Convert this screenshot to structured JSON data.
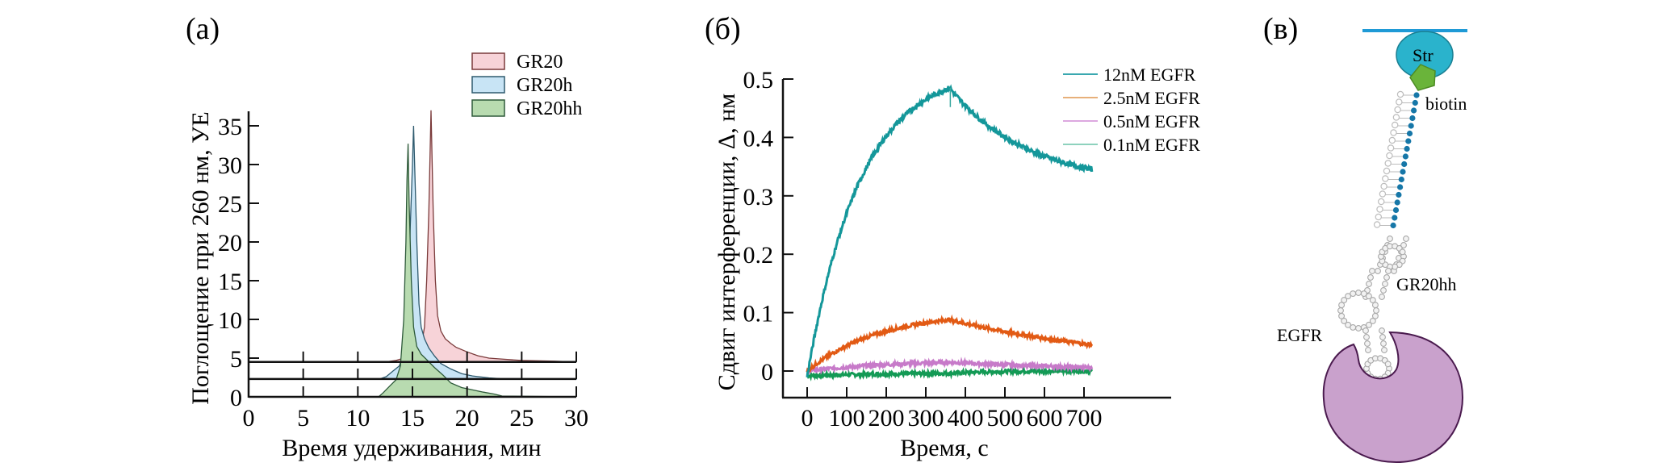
{
  "figure": {
    "panels": [
      {
        "id": "a",
        "label": "(а)"
      },
      {
        "id": "b",
        "label": "(б)"
      },
      {
        "id": "c",
        "label": "(в)"
      }
    ]
  },
  "chart_data": [
    {
      "panel": "(а)",
      "type": "area",
      "title": "",
      "xlabel": "Время удерживания, мин",
      "ylabel": "Поглощение при 260 нм, УЕ",
      "xlim": [
        0,
        30
      ],
      "ylim": [
        0,
        37
      ],
      "xticks": [
        "0",
        "5",
        "10",
        "15",
        "20",
        "25",
        "30"
      ],
      "yticks": [
        "0",
        "5",
        "10",
        "15",
        "20",
        "25",
        "30",
        "35"
      ],
      "legend_position": "top-right",
      "grid": false,
      "series": [
        {
          "name": "GR20",
          "fill": "#f7d3d8",
          "stroke": "#7a3a3a",
          "baseline": 4.5,
          "x": [
            0,
            12.5,
            13.5,
            14.2,
            15.0,
            15.8,
            16.1,
            16.3,
            16.5,
            16.7,
            16.9,
            17.1,
            17.3,
            17.6,
            18.0,
            18.5,
            19.0,
            20.0,
            21.0,
            22.0,
            23.0,
            25.0,
            28.0,
            30.0
          ],
          "y": [
            4.5,
            4.5,
            4.7,
            5.0,
            5.3,
            6.5,
            9.0,
            15.0,
            24.0,
            37.0,
            24.0,
            15.0,
            10.5,
            8.5,
            7.5,
            6.9,
            6.4,
            5.8,
            5.3,
            5.0,
            4.9,
            4.7,
            4.6,
            4.5
          ]
        },
        {
          "name": "GR20h",
          "fill": "#c8e4f5",
          "stroke": "#2e5a6e",
          "baseline": 2.3,
          "x": [
            0,
            12.0,
            12.6,
            13.2,
            13.8,
            14.3,
            14.6,
            14.8,
            15.0,
            15.1,
            15.2,
            15.4,
            15.6,
            15.8,
            16.1,
            16.5,
            17.0,
            17.6,
            18.5,
            19.5,
            20.5,
            22.0,
            23.0,
            30.0
          ],
          "y": [
            2.3,
            2.3,
            2.6,
            3.3,
            4.0,
            6.0,
            12.0,
            22.0,
            30.0,
            35.0,
            30.0,
            20.0,
            12.0,
            9.0,
            7.5,
            6.3,
            5.3,
            4.3,
            3.6,
            3.0,
            2.7,
            2.45,
            2.35,
            2.3
          ]
        },
        {
          "name": "GR20hh",
          "fill": "#b8dbb0",
          "stroke": "#2e5a3a",
          "baseline": 0,
          "x": [
            0,
            11.9,
            12.3,
            13.0,
            13.5,
            13.9,
            14.2,
            14.4,
            14.5,
            14.6,
            14.7,
            14.9,
            15.1,
            15.4,
            15.8,
            16.3,
            17.0,
            17.8,
            18.5,
            19.5,
            20.5,
            21.5,
            22.5,
            23.2,
            30.0
          ],
          "y": [
            0,
            0,
            0.5,
            1.5,
            2.2,
            4.0,
            10.0,
            20.0,
            28.0,
            32.7,
            25.0,
            15.0,
            9.0,
            6.5,
            5.5,
            4.8,
            3.8,
            2.8,
            1.8,
            1.2,
            0.9,
            0.6,
            0.35,
            0.1,
            0
          ]
        }
      ]
    },
    {
      "panel": "(б)",
      "type": "line",
      "title": "",
      "xlabel": "Время, с",
      "ylabel": "Сдвиг интерференции, Δ, нм",
      "xlim": [
        -40,
        750
      ],
      "ylim": [
        -0.05,
        0.55
      ],
      "xticks": [
        "0",
        "100",
        "200",
        "300",
        "400",
        "500",
        "600",
        "700"
      ],
      "yticks": [
        "0",
        "0.1",
        "0.2",
        "0.3",
        "0.4",
        "0.5"
      ],
      "legend_position": "top-right",
      "grid": false,
      "association_end_s": 360,
      "series": [
        {
          "name": "12nM EGFR",
          "color": "#14979a",
          "legend_color": "#3aa8b0",
          "association": {
            "start": 0,
            "y0": -0.01,
            "plateau": 0.53,
            "k": 0.0075,
            "y_at_end": 0.485
          },
          "dissociation": {
            "end": 720,
            "y_end": 0.345,
            "k": 0.005
          },
          "noise": 0.004
        },
        {
          "name": "2.5nM EGFR",
          "color": "#e25a14",
          "legend_color": "#e7b07a",
          "association": {
            "start": 0,
            "y0": 0.0,
            "plateau": 0.105,
            "k": 0.0055,
            "y_at_end": 0.088
          },
          "dissociation": {
            "end": 720,
            "y_end": 0.045,
            "k": 0.002
          },
          "noise": 0.003
        },
        {
          "name": "0.5nM EGFR",
          "color": "#c77ac9",
          "legend_color": "#dca8e0",
          "association": {
            "start": 0,
            "y0": 0.0,
            "plateau": 0.02,
            "k": 0.004,
            "y_at_end": 0.015
          },
          "dissociation": {
            "end": 720,
            "y_end": 0.006,
            "k": 0.002
          },
          "noise": 0.003
        },
        {
          "name": "0.1nM EGFR",
          "color": "#139a55",
          "legend_color": "#8ed2bd",
          "association": {
            "start": 0,
            "y0": -0.008,
            "plateau": -0.003,
            "k": 0.004,
            "y_at_end": -0.004
          },
          "dissociation": {
            "end": 720,
            "y_end": 0.0,
            "k": 0.01
          },
          "noise": 0.003
        }
      ]
    }
  ],
  "diagram": {
    "labels": {
      "streptavidin": "Str",
      "biotin": "biotin",
      "aptamer": "GR20hh",
      "protein": "EGFR"
    },
    "colors": {
      "surface": "#1f9ad6",
      "streptavidin": "#2ab3cc",
      "biotin": "#6ab43a",
      "linker": "#1677a8",
      "aptamer": "#bdbdbd",
      "protein": "#c9a1cc",
      "protein_stroke": "#4a1a4e"
    }
  }
}
